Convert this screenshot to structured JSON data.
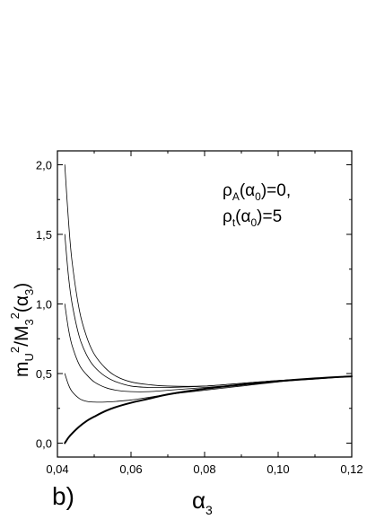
{
  "chart_data": {
    "type": "line",
    "panel_label": "b)",
    "xlabel": {
      "main": "α",
      "sub": "3"
    },
    "ylabel": {
      "m": "m",
      "m_sub": "U",
      "sup1": "2",
      "slash": "/M",
      "M_sub": "3",
      "sup2": "2",
      "paren_open": "(α",
      "alpha_sub": "3",
      "paren_close": ")"
    },
    "annotation": {
      "line1": {
        "rho": "ρ",
        "rho_sub": "A",
        "alpha_open": "(α",
        "alpha_sub": "0",
        "value": ")=0,"
      },
      "line2": {
        "rho": "ρ",
        "rho_sub": "t",
        "alpha_open": "(α",
        "alpha_sub": "0",
        "value": ")=5"
      }
    },
    "xlim": [
      0.04,
      0.12
    ],
    "ylim": [
      -0.1,
      2.1
    ],
    "xticks": [
      0.04,
      0.06,
      0.08,
      0.1,
      0.12
    ],
    "xtick_labels": [
      "0,04",
      "0,06",
      "0,08",
      "0,10",
      "0,12"
    ],
    "yticks": [
      0.0,
      0.5,
      1.0,
      1.5,
      2.0
    ],
    "ytick_labels": [
      "0,0",
      "0,5",
      "1,0",
      "1,5",
      "2,0"
    ],
    "grid": false,
    "series": [
      {
        "bold": false,
        "x": [
          0.042,
          0.043,
          0.044,
          0.046,
          0.048,
          0.05,
          0.053,
          0.056,
          0.06,
          0.065,
          0.07,
          0.08,
          0.09,
          0.1,
          0.11,
          0.12
        ],
        "y": [
          2.0,
          1.6,
          1.3,
          0.95,
          0.76,
          0.64,
          0.54,
          0.48,
          0.44,
          0.42,
          0.41,
          0.41,
          0.43,
          0.45,
          0.465,
          0.48
        ]
      },
      {
        "bold": false,
        "x": [
          0.042,
          0.043,
          0.044,
          0.046,
          0.048,
          0.05,
          0.053,
          0.056,
          0.06,
          0.065,
          0.07,
          0.08,
          0.09,
          0.1,
          0.11,
          0.12
        ],
        "y": [
          1.5,
          1.2,
          1.0,
          0.76,
          0.63,
          0.55,
          0.48,
          0.44,
          0.41,
          0.4,
          0.4,
          0.41,
          0.43,
          0.45,
          0.465,
          0.48
        ]
      },
      {
        "bold": false,
        "x": [
          0.042,
          0.043,
          0.044,
          0.046,
          0.048,
          0.05,
          0.053,
          0.056,
          0.06,
          0.065,
          0.07,
          0.08,
          0.09,
          0.1,
          0.11,
          0.12
        ],
        "y": [
          1.0,
          0.82,
          0.7,
          0.56,
          0.49,
          0.44,
          0.4,
          0.38,
          0.37,
          0.37,
          0.38,
          0.4,
          0.42,
          0.445,
          0.465,
          0.48
        ]
      },
      {
        "bold": false,
        "x": [
          0.042,
          0.043,
          0.044,
          0.046,
          0.048,
          0.05,
          0.053,
          0.056,
          0.06,
          0.065,
          0.07,
          0.08,
          0.09,
          0.1,
          0.11,
          0.12
        ],
        "y": [
          0.5,
          0.42,
          0.37,
          0.32,
          0.3,
          0.295,
          0.295,
          0.3,
          0.31,
          0.33,
          0.35,
          0.38,
          0.41,
          0.44,
          0.46,
          0.48
        ]
      },
      {
        "bold": true,
        "x": [
          0.042,
          0.043,
          0.044,
          0.046,
          0.048,
          0.05,
          0.053,
          0.056,
          0.06,
          0.065,
          0.07,
          0.08,
          0.09,
          0.1,
          0.11,
          0.12
        ],
        "y": [
          0.0,
          0.04,
          0.07,
          0.12,
          0.16,
          0.19,
          0.23,
          0.26,
          0.29,
          0.32,
          0.35,
          0.39,
          0.42,
          0.445,
          0.465,
          0.48
        ]
      }
    ]
  }
}
